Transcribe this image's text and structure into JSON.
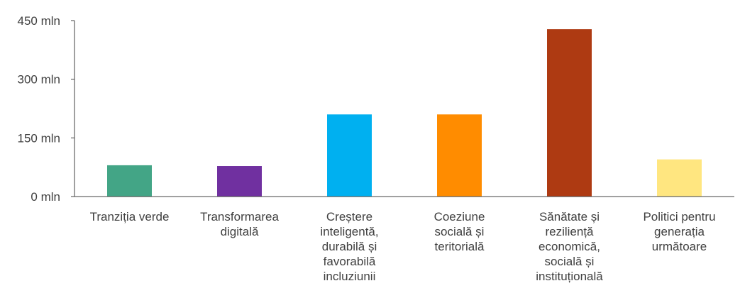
{
  "chart_data": {
    "type": "bar",
    "title": "",
    "xlabel": "",
    "ylabel": "",
    "ylim": [
      0,
      450
    ],
    "yticks": [
      0,
      150,
      300,
      450
    ],
    "ytick_labels": [
      "0 mln",
      "150 mln",
      "300 mln",
      "450 mln"
    ],
    "grid": false,
    "legend": "none",
    "categories": [
      [
        "Tranziția verde"
      ],
      [
        "Transformarea",
        "digitală"
      ],
      [
        "Creștere",
        "inteligentă,",
        "durabilă și",
        "favorabilă",
        "incluziunii"
      ],
      [
        "Coeziune",
        "socială și",
        "teritorială"
      ],
      [
        "Sănătate și",
        "reziliență",
        "economică,",
        "socială și",
        "instituțională"
      ],
      [
        "Politici pentru",
        "generația",
        "următoare"
      ]
    ],
    "values": [
      80,
      78,
      210,
      210,
      428,
      95
    ],
    "colors": [
      "#43A586",
      "#7030A0",
      "#00B0F0",
      "#FF8C00",
      "#AE3A12",
      "#FFE680"
    ],
    "axis_color": "#404040"
  }
}
